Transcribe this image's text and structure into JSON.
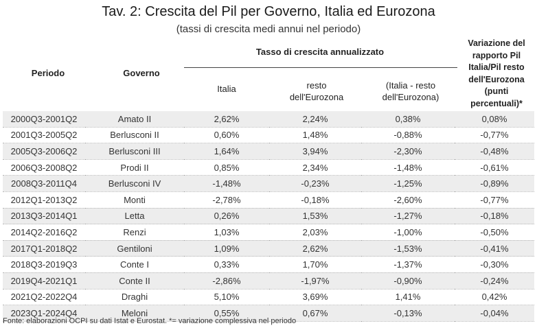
{
  "title": "Tav. 2: Crescita del Pil per Governo, Italia ed Eurozona",
  "subtitle": "(tassi di crescita medi annui nel periodo)",
  "headers": {
    "periodo": "Periodo",
    "governo": "Governo",
    "group": "Tasso di crescita annualizzato",
    "italia": "Italia",
    "resto_line1": "resto",
    "resto_line2": "dell'Eurozona",
    "diff_line1": "(Italia - resto",
    "diff_line2": "dell'Eurozona)",
    "var_line1": "Variazione del",
    "var_line2": "rapporto Pil",
    "var_line3": "Italia/Pil resto",
    "var_line4": "dell'Eurozona",
    "var_line5": "(punti",
    "var_line6": "percentuali)*"
  },
  "rows": [
    {
      "periodo": "2000Q3-2001Q2",
      "governo": "Amato II",
      "italia": "2,62%",
      "resto": "2,24%",
      "diff": "0,38%",
      "var": "0,08%"
    },
    {
      "periodo": "2001Q3-2005Q2",
      "governo": "Berlusconi II",
      "italia": "0,60%",
      "resto": "1,48%",
      "diff": "-0,88%",
      "var": "-0,77%"
    },
    {
      "periodo": "2005Q3-2006Q2",
      "governo": "Berlusconi III",
      "italia": "1,64%",
      "resto": "3,94%",
      "diff": "-2,30%",
      "var": "-0,48%"
    },
    {
      "periodo": "2006Q3-2008Q2",
      "governo": "Prodi II",
      "italia": "0,85%",
      "resto": "2,34%",
      "diff": "-1,48%",
      "var": "-0,61%"
    },
    {
      "periodo": "2008Q3-2011Q4",
      "governo": "Berlusconi IV",
      "italia": "-1,48%",
      "resto": "-0,23%",
      "diff": "-1,25%",
      "var": "-0,89%"
    },
    {
      "periodo": "2012Q1-2013Q2",
      "governo": "Monti",
      "italia": "-2,78%",
      "resto": "-0,18%",
      "diff": "-2,60%",
      "var": "-0,77%"
    },
    {
      "periodo": "2013Q3-2014Q1",
      "governo": "Letta",
      "italia": "0,26%",
      "resto": "1,53%",
      "diff": "-1,27%",
      "var": "-0,18%"
    },
    {
      "periodo": "2014Q2-2016Q2",
      "governo": "Renzi",
      "italia": "1,03%",
      "resto": "2,03%",
      "diff": "-1,00%",
      "var": "-0,50%"
    },
    {
      "periodo": "2017Q1-2018Q2",
      "governo": "Gentiloni",
      "italia": "1,09%",
      "resto": "2,62%",
      "diff": "-1,53%",
      "var": "-0,41%"
    },
    {
      "periodo": "2018Q3-2019Q3",
      "governo": "Conte I",
      "italia": "0,33%",
      "resto": "1,70%",
      "diff": "-1,37%",
      "var": "-0,30%"
    },
    {
      "periodo": "2019Q4-2021Q1",
      "governo": "Conte II",
      "italia": "-2,86%",
      "resto": "-1,97%",
      "diff": "-0,90%",
      "var": "-0,24%"
    },
    {
      "periodo": "2021Q2-2022Q4",
      "governo": "Draghi",
      "italia": "5,10%",
      "resto": "3,69%",
      "diff": "1,41%",
      "var": "0,42%"
    },
    {
      "periodo": "2023Q1-2024Q4",
      "governo": "Meloni",
      "italia": "0,55%",
      "resto": "0,67%",
      "diff": "-0,13%",
      "var": "-0,04%"
    }
  ],
  "source": "Fonte: elaborazioni OCPI su dati Istat e Eurostat. *= variazione complessiva nel periodo"
}
